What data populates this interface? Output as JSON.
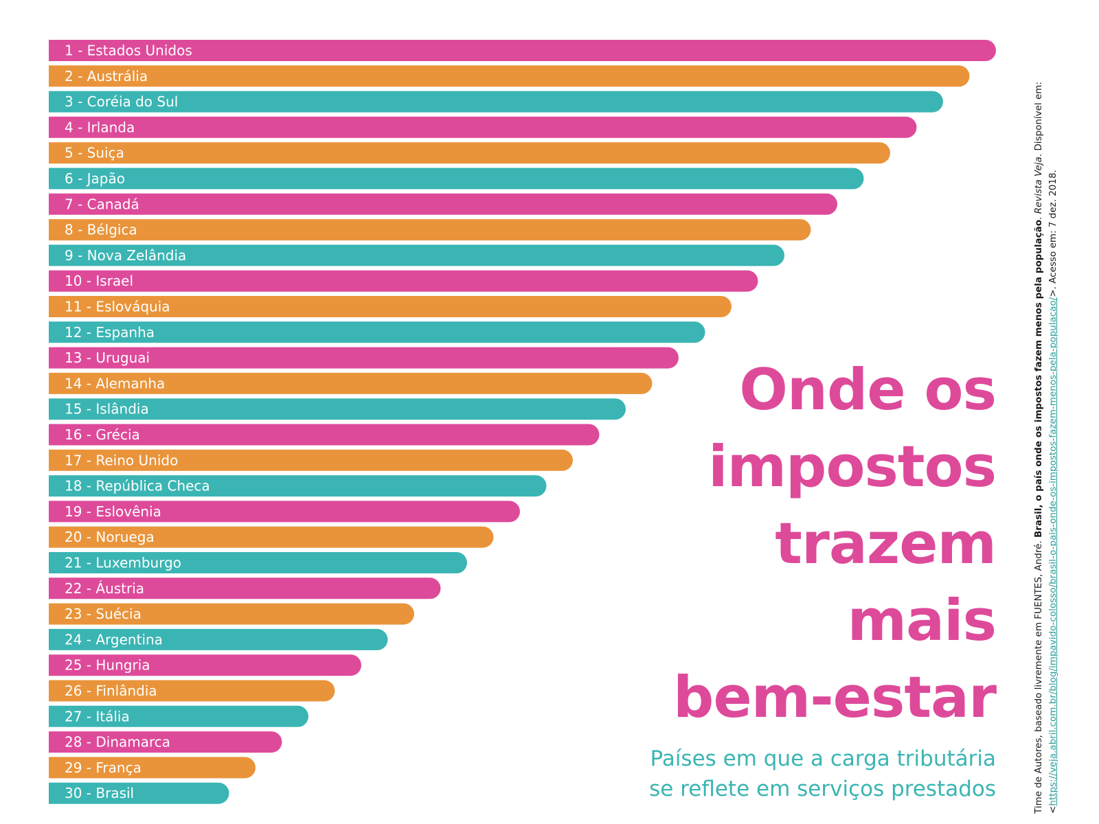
{
  "chart_data": {
    "type": "bar",
    "orientation": "horizontal",
    "ranks": [
      1,
      2,
      3,
      4,
      5,
      6,
      7,
      8,
      9,
      10,
      11,
      12,
      13,
      14,
      15,
      16,
      17,
      18,
      19,
      20,
      21,
      22,
      23,
      24,
      25,
      26,
      27,
      28,
      29,
      30
    ],
    "categories": [
      "1 - Estados Unidos",
      "2 - Austrália",
      "3 - Coréia do Sul",
      "4 - Irlanda",
      "5 - Suiça",
      "6 - Japão",
      "7 - Canadá",
      "8 - Bélgica",
      "9 - Nova Zelândia",
      "10 - Israel",
      "11 - Eslováquia",
      "12 - Espanha",
      "13 - Uruguai",
      "14 - Alemanha",
      "15 - Islândia",
      "16 - Grécia",
      "17 - Reino Unido",
      "18 - República Checa",
      "19 - Eslovênia",
      "20 - Noruega",
      "21 - Luxemburgo",
      "22 - Áustria",
      "23 - Suécia",
      "24 - Argentina",
      "25 - Hungria",
      "26 - Finlândia",
      "27 - Itália",
      "28 - Dinamarca",
      "29 - França",
      "30 - Brasil"
    ],
    "bar_colors": [
      "#de4a9a",
      "#e9943a",
      "#3ab5b3"
    ],
    "grid": false,
    "legend": "none"
  },
  "title_lines": [
    "Onde os",
    "impostos",
    "trazem",
    "mais",
    "bem-estar"
  ],
  "subtitle_lines": [
    "Países em que a carga tributária",
    "se reflete em serviços prestados"
  ],
  "credit": {
    "text_1": "Time de Autores, baseado livremente em FUENTES, André. ",
    "bold_title": "Brasil, o país onde os impostos fazem menos pela população",
    "text_2": ". ",
    "italic_source": "Revista Veja",
    "text_3": ". Disponível em: <",
    "url": "https://veja.abril.com.br/blog/impavido-colosso/brasil-o-pais-onde-os-impostos-fazem-menos-pela-populacao/",
    "text_4": ">. Acesso em: 7 dez. 2018."
  },
  "colors": {
    "pink": "#de4a9a",
    "orange": "#e9943a",
    "teal": "#3ab5b3",
    "background": "#ffffff"
  }
}
